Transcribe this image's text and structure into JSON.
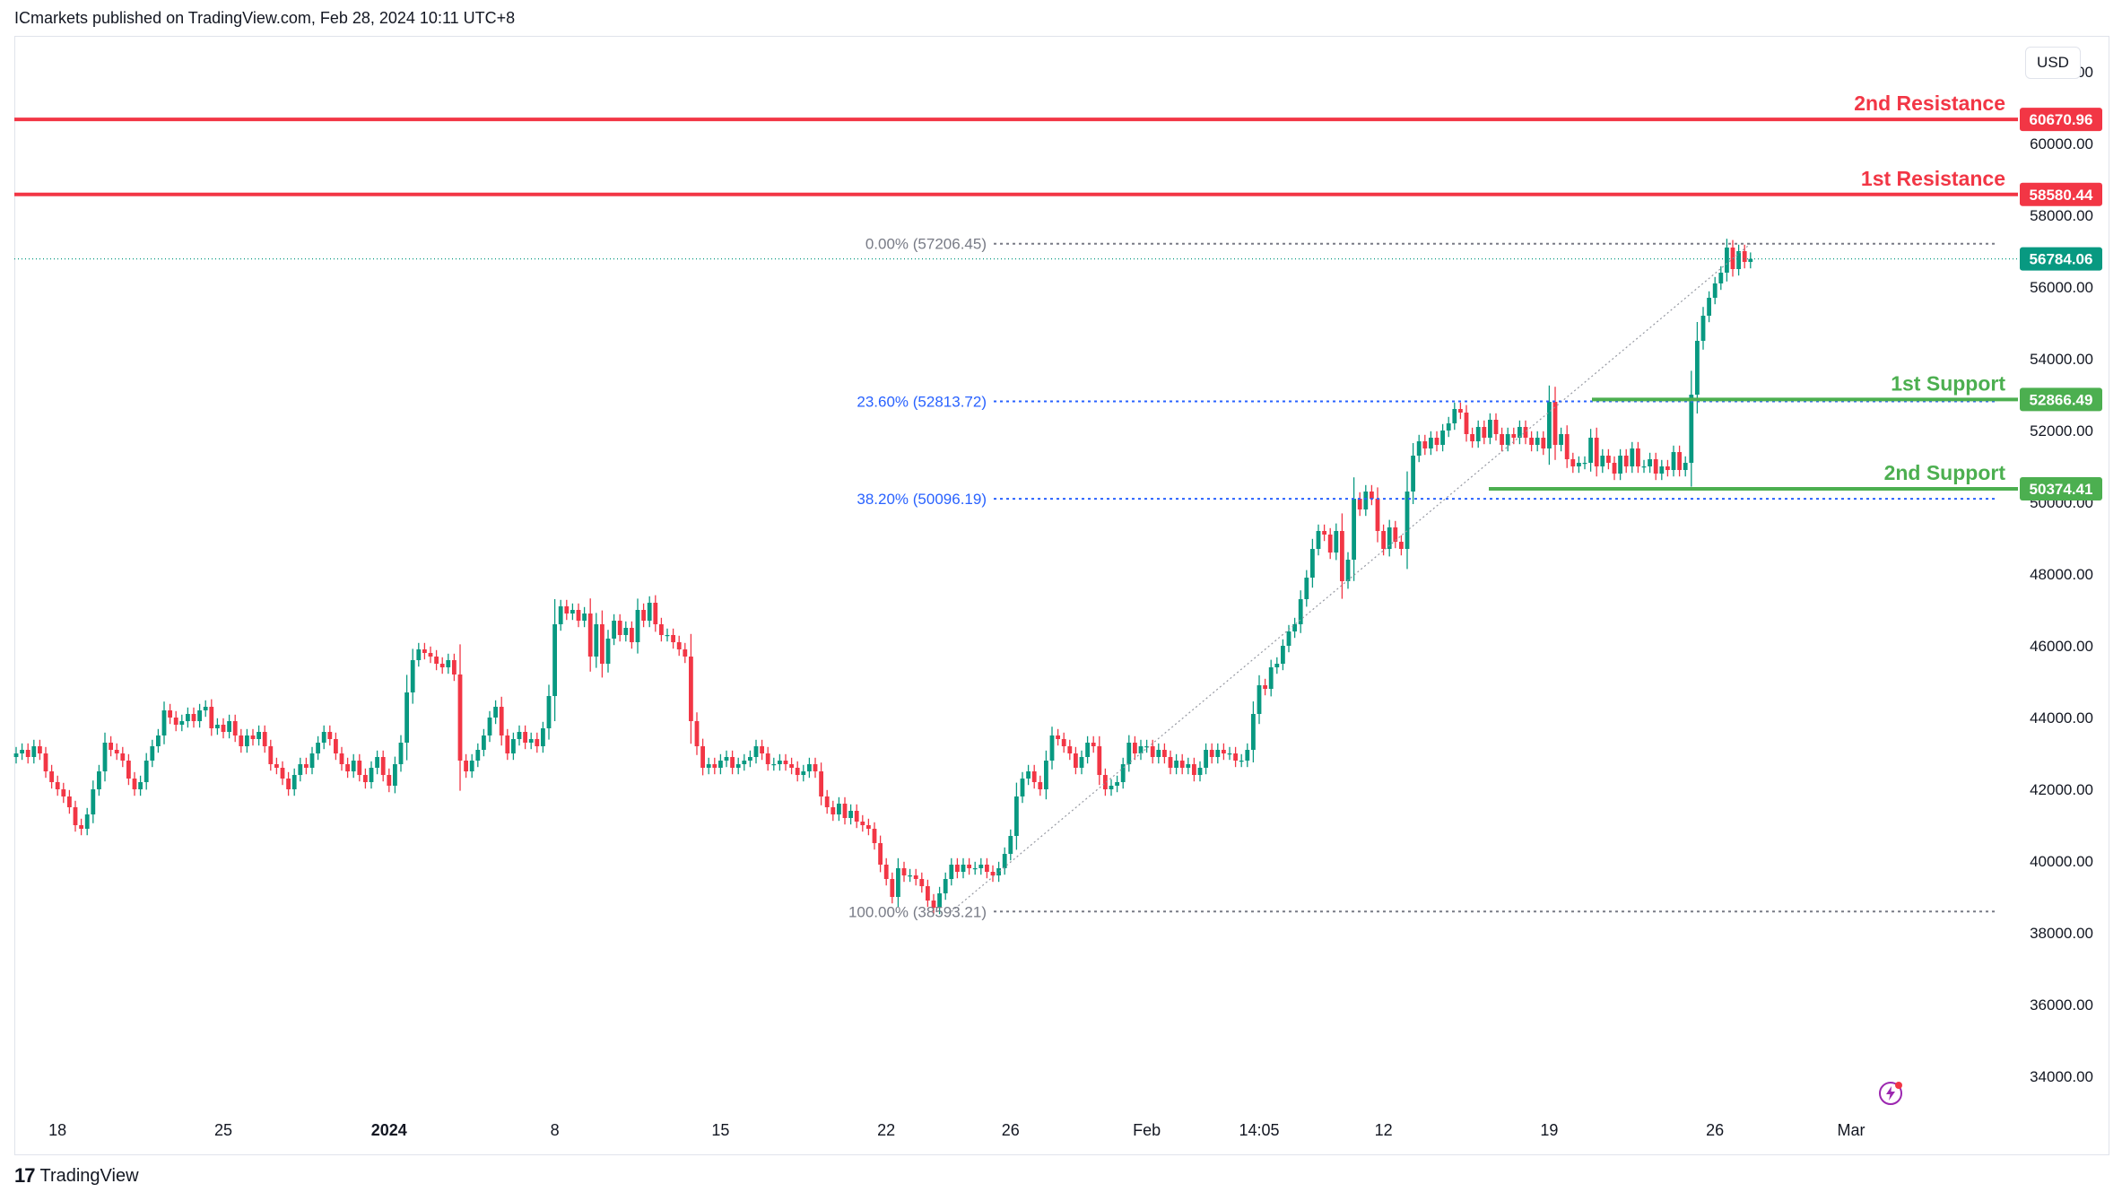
{
  "header": {
    "publisher_line": "ICmarkets published on TradingView.com, Feb 28, 2024 10:11 UTC+8"
  },
  "footer": {
    "brand": "TradingView"
  },
  "currency": "USD",
  "colors": {
    "up": "#089981",
    "down": "#f23645",
    "resistance": "#f23645",
    "support": "#4caf50",
    "fib_blue": "#2962ff",
    "fib_gray": "#787b86"
  },
  "chart_data": {
    "type": "candlestick",
    "ylim": [
      33000,
      63000
    ],
    "y_ticks": [
      62000,
      60000,
      58000,
      56000,
      54000,
      52000,
      50000,
      48000,
      46000,
      44000,
      42000,
      40000,
      38000,
      36000,
      34000
    ],
    "y_tick_labels": [
      "62000.00",
      "60000.00",
      "58000.00",
      "56000.00",
      "54000.00",
      "52000.00",
      "50000.00",
      "48000.00",
      "46000.00",
      "44000.00",
      "42000.00",
      "40000.00",
      "38000.00",
      "36000.00",
      "34000.00"
    ],
    "x_ticks": [
      {
        "label": "18",
        "bar": 7,
        "bold": false
      },
      {
        "label": "25",
        "bar": 35,
        "bold": false
      },
      {
        "label": "2024",
        "bar": 63,
        "bold": true
      },
      {
        "label": "8",
        "bar": 91,
        "bold": false
      },
      {
        "label": "15",
        "bar": 119,
        "bold": false
      },
      {
        "label": "22",
        "bar": 147,
        "bold": false
      },
      {
        "label": "26",
        "bar": 168,
        "bold": false
      },
      {
        "label": "Feb",
        "bar": 191,
        "bold": false
      },
      {
        "label": "14:05",
        "bar": 210,
        "bold": false
      },
      {
        "label": "12",
        "bar": 231,
        "bold": false
      },
      {
        "label": "19",
        "bar": 259,
        "bold": false
      },
      {
        "label": "26",
        "bar": 287,
        "bold": false
      },
      {
        "label": "Mar",
        "bar": 310,
        "bold": false
      }
    ],
    "levels": [
      {
        "name": "2nd Resistance",
        "value": 60670.96,
        "label": "60670.96",
        "kind": "resistance"
      },
      {
        "name": "1st Resistance",
        "value": 58580.44,
        "label": "58580.44",
        "kind": "resistance"
      },
      {
        "name": "1st Support",
        "value": 52866.49,
        "label": "52866.49",
        "kind": "support"
      },
      {
        "name": "2nd Support",
        "value": 50374.41,
        "label": "50374.41",
        "kind": "support"
      }
    ],
    "current_price": {
      "value": 56784.06,
      "label": "56784.06"
    },
    "fibonacci": [
      {
        "label": "0.00% (57206.45)",
        "value": 57206.45,
        "color": "gray"
      },
      {
        "label": "23.60% (52813.72)",
        "value": 52813.72,
        "color": "blue"
      },
      {
        "label": "38.20% (50096.19)",
        "value": 50096.19,
        "color": "blue"
      },
      {
        "label": "100.00% (38593.21)",
        "value": 38593.21,
        "color": "gray"
      }
    ],
    "fib_anchor": {
      "from_bar": 158,
      "from_value": 38593.21,
      "to_bar": 293,
      "to_value": 57206.45
    },
    "close_series": [
      43000,
      43100,
      42900,
      43200,
      43000,
      42500,
      42200,
      42000,
      41800,
      41500,
      41000,
      40900,
      41300,
      42000,
      42500,
      43300,
      43100,
      43000,
      42800,
      42300,
      42000,
      42200,
      42800,
      43200,
      43500,
      44200,
      44000,
      43800,
      43900,
      44100,
      43900,
      44200,
      44300,
      43700,
      43800,
      43600,
      43900,
      43500,
      43200,
      43500,
      43400,
      43600,
      43200,
      42700,
      42600,
      42300,
      42000,
      42400,
      42700,
      42600,
      43000,
      43300,
      43600,
      43400,
      43000,
      42700,
      42500,
      42800,
      42400,
      42200,
      42600,
      42900,
      42400,
      42100,
      42700,
      43300,
      44700,
      45600,
      45900,
      45800,
      45700,
      45500,
      45400,
      45600,
      45200,
      42800,
      42500,
      42800,
      43100,
      43500,
      44000,
      44300,
      43500,
      43000,
      43400,
      43600,
      43300,
      43400,
      43200,
      43700,
      44600,
      46600,
      47100,
      46900,
      47000,
      46700,
      46900,
      45700,
      46600,
      45500,
      46200,
      46700,
      46300,
      46500,
      46100,
      47000,
      46700,
      47200,
      46600,
      46300,
      46300,
      46100,
      45900,
      45700,
      43900,
      43200,
      42600,
      42700,
      42600,
      42800,
      42900,
      42600,
      42700,
      42800,
      42900,
      43200,
      43000,
      42700,
      42700,
      42800,
      42700,
      42600,
      42400,
      42500,
      42700,
      42500,
      41800,
      41500,
      41300,
      41600,
      41200,
      41400,
      41100,
      41000,
      40900,
      40500,
      39900,
      39500,
      39000,
      39800,
      39600,
      39600,
      39500,
      39300,
      38900,
      38700,
      39100,
      39500,
      39900,
      39700,
      39900,
      39800,
      39800,
      39900,
      39700,
      39600,
      39800,
      40200,
      40700,
      41800,
      42300,
      42500,
      42200,
      42000,
      42800,
      43500,
      43400,
      43200,
      43000,
      42600,
      42900,
      43300,
      43200,
      42400,
      42000,
      42100,
      42200,
      42700,
      43300,
      43000,
      43200,
      43200,
      42900,
      43100,
      42900,
      42600,
      42800,
      42600,
      42700,
      42400,
      42600,
      43100,
      42900,
      43100,
      43000,
      43000,
      42800,
      42800,
      43100,
      44100,
      44900,
      44800,
      45400,
      45500,
      46000,
      46400,
      46600,
      47300,
      47900,
      48700,
      49200,
      49100,
      48600,
      49200,
      47800,
      48400,
      50100,
      49800,
      50300,
      50100,
      49200,
      48700,
      49300,
      48900,
      48700,
      50300,
      51300,
      51700,
      51500,
      51800,
      51600,
      52000,
      52200,
      52600,
      52500,
      51900,
      51700,
      52100,
      51800,
      52300,
      51900,
      51600,
      51900,
      51800,
      52100,
      51800,
      51600,
      51800,
      51500,
      52800,
      51600,
      51900,
      51200,
      51000,
      51100,
      51100,
      51800,
      51000,
      51300,
      51100,
      50800,
      51300,
      51000,
      51500,
      51000,
      51000,
      51200,
      50800,
      51000,
      50900,
      51400,
      50900,
      51100,
      53000,
      54500,
      55200,
      55700,
      56100,
      56400,
      57100,
      56500,
      57000,
      56700,
      56784
    ]
  }
}
